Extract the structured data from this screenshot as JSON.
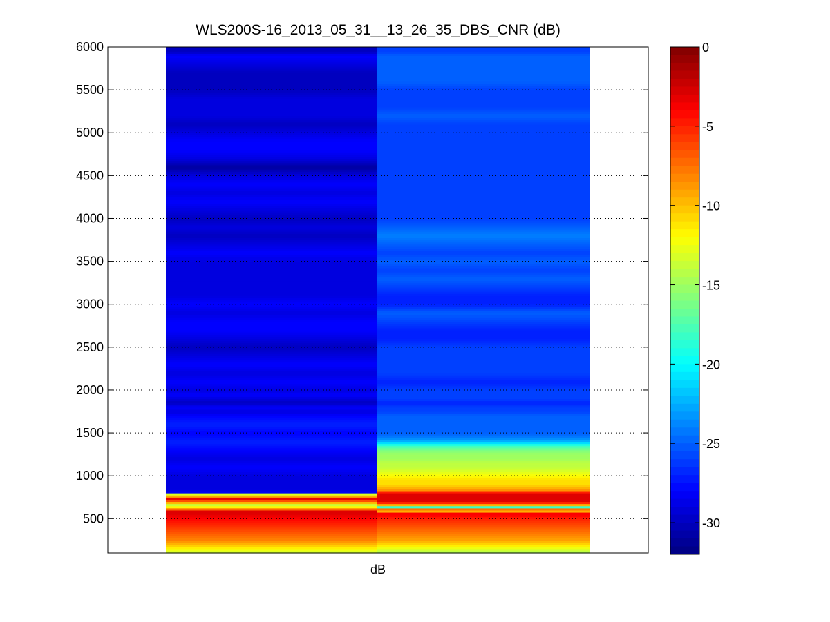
{
  "chart_data": {
    "type": "heatmap",
    "title": "WLS200S-16_2013_05_31__13_26_35_DBS_CNR (dB)",
    "xlabel": "dB",
    "ylabel": "",
    "ylim": [
      100,
      6000
    ],
    "yticks": [
      500,
      1000,
      1500,
      2000,
      2500,
      3000,
      3500,
      4000,
      4500,
      5000,
      5500,
      6000
    ],
    "grid": "y-major-dotted",
    "colormap": "jet",
    "clim": [
      -32,
      0
    ],
    "colorbar_ticks": [
      0,
      -5,
      -10,
      -15,
      -20,
      -25,
      -30
    ],
    "columns": [
      {
        "profile": [
          [
            100,
            -14
          ],
          [
            150,
            -12
          ],
          [
            200,
            -10
          ],
          [
            260,
            -8
          ],
          [
            320,
            -7
          ],
          [
            380,
            -6
          ],
          [
            440,
            -5
          ],
          [
            500,
            -4
          ],
          [
            560,
            -3
          ],
          [
            600,
            -3
          ],
          [
            620,
            -10
          ],
          [
            660,
            -14
          ],
          [
            700,
            -8
          ],
          [
            740,
            -3
          ],
          [
            760,
            -10
          ],
          [
            780,
            -4
          ],
          [
            800,
            -28
          ],
          [
            840,
            -29
          ],
          [
            900,
            -29
          ],
          [
            1000,
            -29
          ],
          [
            1100,
            -28
          ],
          [
            1200,
            -29
          ],
          [
            1300,
            -28
          ],
          [
            1400,
            -27
          ],
          [
            1500,
            -28
          ],
          [
            1600,
            -27
          ],
          [
            1700,
            -28
          ],
          [
            1750,
            -29
          ],
          [
            1800,
            -28
          ],
          [
            1850,
            -30
          ],
          [
            1900,
            -29
          ],
          [
            1950,
            -28
          ],
          [
            2000,
            -29
          ],
          [
            2100,
            -28
          ],
          [
            2200,
            -29
          ],
          [
            2300,
            -28
          ],
          [
            2400,
            -29
          ],
          [
            2500,
            -30
          ],
          [
            2600,
            -29
          ],
          [
            2700,
            -28
          ],
          [
            2800,
            -28
          ],
          [
            2900,
            -29
          ],
          [
            3000,
            -28
          ],
          [
            3100,
            -29
          ],
          [
            3200,
            -29
          ],
          [
            3300,
            -29
          ],
          [
            3400,
            -29
          ],
          [
            3500,
            -29
          ],
          [
            3600,
            -28
          ],
          [
            3700,
            -29
          ],
          [
            3800,
            -30
          ],
          [
            3900,
            -29
          ],
          [
            4000,
            -30
          ],
          [
            4100,
            -29
          ],
          [
            4200,
            -28
          ],
          [
            4300,
            -29
          ],
          [
            4400,
            -28
          ],
          [
            4500,
            -29
          ],
          [
            4600,
            -31
          ],
          [
            4700,
            -29
          ],
          [
            4800,
            -28
          ],
          [
            4900,
            -28
          ],
          [
            5000,
            -29
          ],
          [
            5100,
            -30
          ],
          [
            5200,
            -29
          ],
          [
            5300,
            -29
          ],
          [
            5400,
            -29
          ],
          [
            5500,
            -30
          ],
          [
            5600,
            -30
          ],
          [
            5700,
            -30
          ],
          [
            5800,
            -29
          ],
          [
            5900,
            -28
          ],
          [
            5950,
            -30
          ]
        ]
      },
      {
        "profile": [
          [
            100,
            -15
          ],
          [
            150,
            -13
          ],
          [
            200,
            -11
          ],
          [
            260,
            -9
          ],
          [
            320,
            -8
          ],
          [
            380,
            -7
          ],
          [
            440,
            -6
          ],
          [
            500,
            -5
          ],
          [
            540,
            -4
          ],
          [
            560,
            -3
          ],
          [
            580,
            -10
          ],
          [
            620,
            -7
          ],
          [
            640,
            -20
          ],
          [
            660,
            -10
          ],
          [
            700,
            -3
          ],
          [
            760,
            -3
          ],
          [
            800,
            -3
          ],
          [
            840,
            -9
          ],
          [
            880,
            -10
          ],
          [
            900,
            -11
          ],
          [
            950,
            -11
          ],
          [
            1000,
            -12
          ],
          [
            1050,
            -13
          ],
          [
            1100,
            -14
          ],
          [
            1150,
            -14
          ],
          [
            1200,
            -15
          ],
          [
            1250,
            -15
          ],
          [
            1300,
            -16
          ],
          [
            1350,
            -18
          ],
          [
            1400,
            -22
          ],
          [
            1450,
            -24
          ],
          [
            1500,
            -25
          ],
          [
            1550,
            -25
          ],
          [
            1600,
            -25
          ],
          [
            1650,
            -25
          ],
          [
            1700,
            -25
          ],
          [
            1750,
            -26
          ],
          [
            1800,
            -26
          ],
          [
            1850,
            -27
          ],
          [
            1900,
            -26
          ],
          [
            2000,
            -26
          ],
          [
            2100,
            -27
          ],
          [
            2200,
            -26
          ],
          [
            2300,
            -26
          ],
          [
            2400,
            -26
          ],
          [
            2500,
            -26
          ],
          [
            2600,
            -27
          ],
          [
            2700,
            -27
          ],
          [
            2800,
            -26
          ],
          [
            2900,
            -25
          ],
          [
            3000,
            -27
          ],
          [
            3100,
            -27
          ],
          [
            3200,
            -26
          ],
          [
            3300,
            -25
          ],
          [
            3400,
            -26
          ],
          [
            3500,
            -25
          ],
          [
            3600,
            -26
          ],
          [
            3700,
            -25
          ],
          [
            3800,
            -24
          ],
          [
            3900,
            -25
          ],
          [
            4000,
            -26
          ],
          [
            4100,
            -26
          ],
          [
            4200,
            -26
          ],
          [
            4300,
            -26
          ],
          [
            4400,
            -26
          ],
          [
            4500,
            -26
          ],
          [
            4600,
            -26
          ],
          [
            4700,
            -26
          ],
          [
            4800,
            -26
          ],
          [
            4900,
            -26
          ],
          [
            5000,
            -26
          ],
          [
            5100,
            -26
          ],
          [
            5200,
            -25
          ],
          [
            5300,
            -26
          ],
          [
            5400,
            -26
          ],
          [
            5500,
            -26
          ],
          [
            5600,
            -25
          ],
          [
            5700,
            -25
          ],
          [
            5800,
            -25
          ],
          [
            5900,
            -25
          ],
          [
            5950,
            -26
          ]
        ]
      }
    ]
  }
}
